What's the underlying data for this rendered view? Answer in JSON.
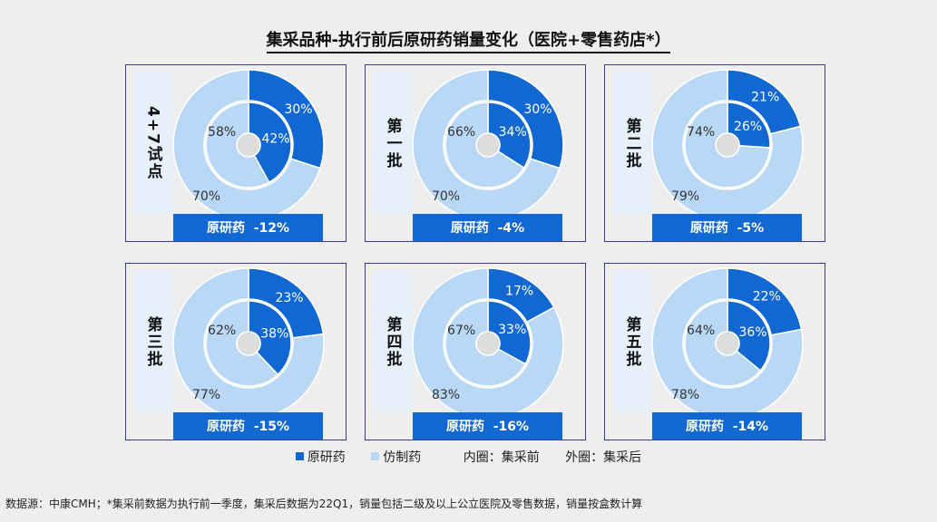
{
  "title": "集采品种-执行前后原研药销量变化（医院+零售药店*）",
  "colors": {
    "original": "#1268d3",
    "generic": "#b9d8f6",
    "center": "#dddddd",
    "bar": "#1268d3"
  },
  "legend": {
    "original": "原研药",
    "generic": "仿制药",
    "inner_note": "内圈：集采前",
    "outer_note": "外圈：集采后"
  },
  "source": "数据源：中康CMH；*集采前数据为执行前一季度，集采后数据为22Q1，销量包括二级及以上公立医院及零售数据，销量按盒数计算",
  "chart_data": [
    {
      "type": "pie",
      "label": "4+7试点",
      "inner": {
        "original": 42,
        "generic": 58
      },
      "outer": {
        "original": 30,
        "generic": 70
      },
      "bar": "原研药  -12%"
    },
    {
      "type": "pie",
      "label": "第一批",
      "inner": {
        "original": 34,
        "generic": 66
      },
      "outer": {
        "original": 30,
        "generic": 70
      },
      "bar": "原研药  -4%"
    },
    {
      "type": "pie",
      "label": "第二批",
      "inner": {
        "original": 26,
        "generic": 74
      },
      "outer": {
        "original": 21,
        "generic": 79
      },
      "bar": "原研药  -5%"
    },
    {
      "type": "pie",
      "label": "第三批",
      "inner": {
        "original": 38,
        "generic": 62
      },
      "outer": {
        "original": 23,
        "generic": 77
      },
      "bar": "原研药  -15%"
    },
    {
      "type": "pie",
      "label": "第四批",
      "inner": {
        "original": 33,
        "generic": 67
      },
      "outer": {
        "original": 17,
        "generic": 83
      },
      "bar": "原研药  -16%"
    },
    {
      "type": "pie",
      "label": "第五批",
      "inner": {
        "original": 36,
        "generic": 64
      },
      "outer": {
        "original": 22,
        "generic": 78
      },
      "bar": "原研药  -14%"
    }
  ]
}
